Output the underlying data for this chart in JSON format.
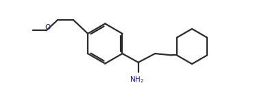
{
  "bg_color": "#ffffff",
  "line_color": "#2a2a2a",
  "text_color": "#1a1a8c",
  "line_width": 1.6,
  "figsize": [
    3.88,
    1.34
  ],
  "dpi": 100,
  "nh2_label": "NH$_2$",
  "o_label": "O",
  "xlim": [
    0.0,
    13.5
  ],
  "ylim": [
    0.5,
    6.2
  ]
}
